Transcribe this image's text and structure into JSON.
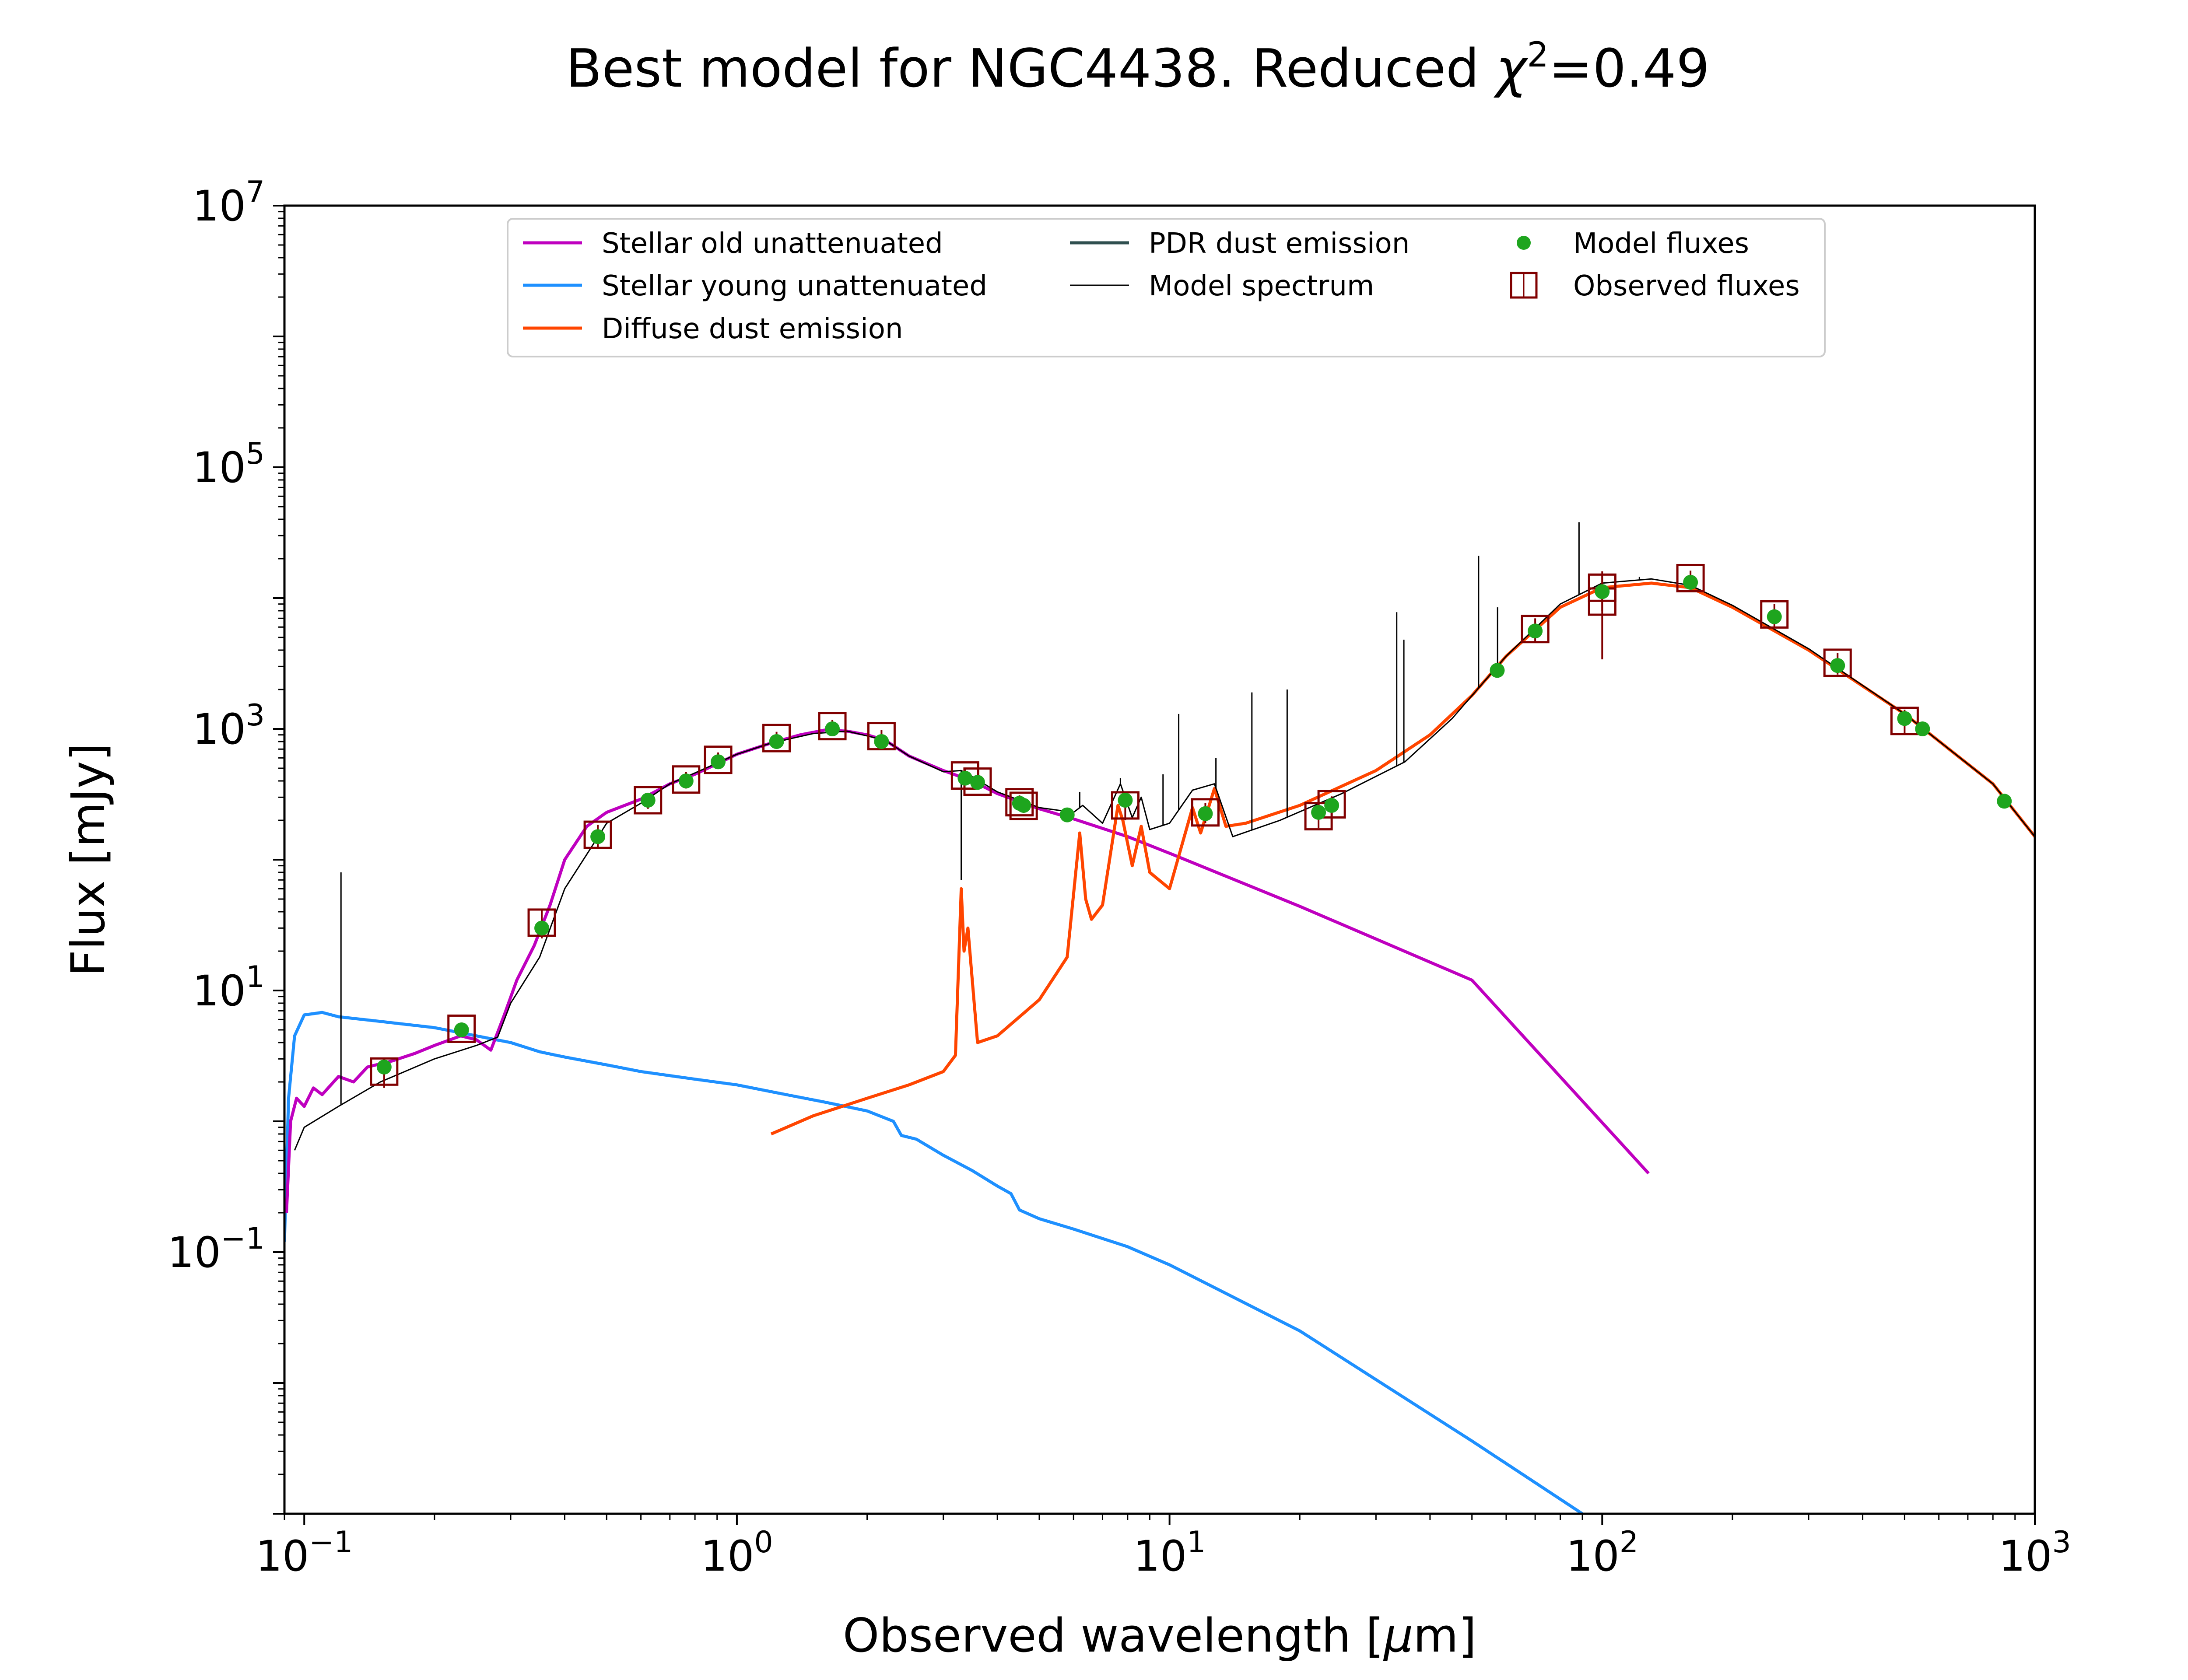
{
  "chart_data": {
    "type": "line",
    "title_main": "Best model for NGC4438. Reduced ",
    "title_chi": "χ",
    "title_exp": "2",
    "title_tail": "=0.49",
    "xlabel_main": "Observed wavelength [",
    "xlabel_mu": "μ",
    "xlabel_tail": "m]",
    "ylabel": "Flux [mJy]",
    "x_scale": "log",
    "y_scale": "log",
    "xlim": [
      0.09,
      1000
    ],
    "ylim": [
      0.001,
      10000000
    ],
    "grid": false,
    "legend_position": "top-center",
    "x_ticks": [
      {
        "value": 0.1,
        "base": "10",
        "exp": "−1"
      },
      {
        "value": 1,
        "base": "10",
        "exp": "0"
      },
      {
        "value": 10,
        "base": "10",
        "exp": "1"
      },
      {
        "value": 100,
        "base": "10",
        "exp": "2"
      },
      {
        "value": 1000,
        "base": "10",
        "exp": "3"
      }
    ],
    "y_ticks": [
      {
        "value": 0.1,
        "base": "10",
        "exp": "−1"
      },
      {
        "value": 10,
        "base": "10",
        "exp": "1"
      },
      {
        "value": 1000,
        "base": "10",
        "exp": "3"
      },
      {
        "value": 100000,
        "base": "10",
        "exp": "5"
      },
      {
        "value": 10000000,
        "base": "10",
        "exp": "7"
      }
    ],
    "legend": [
      {
        "label": "Stellar old unattenuated",
        "kind": "line",
        "color": "#bf00bf"
      },
      {
        "label": "Stellar young unattenuated",
        "kind": "line",
        "color": "#1e90ff"
      },
      {
        "label": "Diffuse dust emission",
        "kind": "line",
        "color": "#ff4500"
      },
      {
        "label": "PDR dust emission",
        "kind": "line",
        "color": "#2f4f4f"
      },
      {
        "label": "Model spectrum",
        "kind": "line",
        "color": "#000000"
      },
      {
        "label": "Model fluxes",
        "kind": "dot",
        "color": "#1ea51e"
      },
      {
        "label": "Observed fluxes",
        "kind": "box",
        "color": "#800000"
      }
    ],
    "series": [
      {
        "name": "Stellar old unattenuated",
        "color": "#bf00bf",
        "points": [
          [
            0.091,
            0.2
          ],
          [
            0.093,
            1.0
          ],
          [
            0.096,
            1.5
          ],
          [
            0.1,
            1.3
          ],
          [
            0.105,
            1.8
          ],
          [
            0.11,
            1.6
          ],
          [
            0.12,
            2.2
          ],
          [
            0.13,
            2.0
          ],
          [
            0.14,
            2.6
          ],
          [
            0.16,
            2.9
          ],
          [
            0.18,
            3.3
          ],
          [
            0.2,
            3.8
          ],
          [
            0.23,
            4.5
          ],
          [
            0.25,
            4.2
          ],
          [
            0.27,
            3.5
          ],
          [
            0.29,
            6.5
          ],
          [
            0.31,
            12
          ],
          [
            0.34,
            22
          ],
          [
            0.37,
            45
          ],
          [
            0.4,
            100
          ],
          [
            0.45,
            180
          ],
          [
            0.5,
            230
          ],
          [
            0.6,
            290
          ],
          [
            0.7,
            380
          ],
          [
            0.8,
            450
          ],
          [
            0.9,
            540
          ],
          [
            1.0,
            640
          ],
          [
            1.2,
            780
          ],
          [
            1.4,
            900
          ],
          [
            1.6,
            980
          ],
          [
            1.8,
            960
          ],
          [
            2.0,
            900
          ],
          [
            2.2,
            820
          ],
          [
            2.5,
            620
          ],
          [
            3.0,
            480
          ],
          [
            3.5,
            400
          ],
          [
            4.0,
            320
          ],
          [
            5.0,
            245
          ],
          [
            6.0,
            205
          ],
          [
            8.0,
            150
          ],
          [
            10,
            112
          ],
          [
            20,
            44
          ],
          [
            50,
            12
          ],
          [
            128,
            0.4
          ]
        ]
      },
      {
        "name": "Stellar young unattenuated",
        "color": "#1e90ff",
        "points": [
          [
            0.09,
            0.12
          ],
          [
            0.092,
            1.5
          ],
          [
            0.095,
            4.5
          ],
          [
            0.1,
            6.5
          ],
          [
            0.11,
            6.8
          ],
          [
            0.12,
            6.3
          ],
          [
            0.15,
            5.8
          ],
          [
            0.2,
            5.2
          ],
          [
            0.25,
            4.5
          ],
          [
            0.3,
            4.0
          ],
          [
            0.35,
            3.4
          ],
          [
            0.4,
            3.1
          ],
          [
            0.5,
            2.7
          ],
          [
            0.6,
            2.4
          ],
          [
            0.8,
            2.1
          ],
          [
            1.0,
            1.9
          ],
          [
            1.3,
            1.6
          ],
          [
            1.6,
            1.4
          ],
          [
            2.0,
            1.2
          ],
          [
            2.3,
            1.0
          ],
          [
            2.4,
            0.78
          ],
          [
            2.6,
            0.73
          ],
          [
            3.0,
            0.55
          ],
          [
            3.5,
            0.42
          ],
          [
            4.0,
            0.32
          ],
          [
            4.3,
            0.28
          ],
          [
            4.5,
            0.21
          ],
          [
            5.0,
            0.18
          ],
          [
            6.0,
            0.15
          ],
          [
            8.0,
            0.11
          ],
          [
            10,
            0.08
          ],
          [
            20,
            0.025
          ],
          [
            50,
            0.0036
          ],
          [
            90,
            0.001
          ]
        ]
      },
      {
        "name": "Diffuse dust emission",
        "color": "#ff4500",
        "points": [
          [
            1.2,
            0.8
          ],
          [
            1.5,
            1.1
          ],
          [
            2.0,
            1.5
          ],
          [
            2.5,
            1.9
          ],
          [
            3.0,
            2.4
          ],
          [
            3.2,
            3.2
          ],
          [
            3.3,
            60
          ],
          [
            3.35,
            20
          ],
          [
            3.42,
            30
          ],
          [
            3.5,
            12
          ],
          [
            3.6,
            4.0
          ],
          [
            4.0,
            4.5
          ],
          [
            5.0,
            8.5
          ],
          [
            5.8,
            18
          ],
          [
            6.2,
            160
          ],
          [
            6.4,
            50
          ],
          [
            6.6,
            35
          ],
          [
            7.0,
            45
          ],
          [
            7.6,
            260
          ],
          [
            7.8,
            200
          ],
          [
            8.2,
            90
          ],
          [
            8.6,
            180
          ],
          [
            9.0,
            80
          ],
          [
            10,
            60
          ],
          [
            11.3,
            250
          ],
          [
            11.8,
            160
          ],
          [
            12.7,
            350
          ],
          [
            13.5,
            180
          ],
          [
            15,
            190
          ],
          [
            20,
            260
          ],
          [
            30,
            480
          ],
          [
            40,
            900
          ],
          [
            50,
            1800
          ],
          [
            60,
            3600
          ],
          [
            80,
            8500
          ],
          [
            100,
            12000
          ],
          [
            130,
            13000
          ],
          [
            160,
            12000
          ],
          [
            200,
            8500
          ],
          [
            300,
            4000
          ],
          [
            500,
            1300
          ],
          [
            800,
            380
          ],
          [
            1000,
            150
          ]
        ]
      },
      {
        "name": "Model spectrum",
        "color": "#000000",
        "points": [
          [
            0.095,
            0.6
          ],
          [
            0.1,
            0.9
          ],
          [
            0.12,
            1.3
          ],
          [
            0.15,
            2.0
          ],
          [
            0.2,
            3.0
          ],
          [
            0.25,
            3.8
          ],
          [
            0.28,
            4.4
          ],
          [
            0.3,
            8.0
          ],
          [
            0.35,
            18
          ],
          [
            0.4,
            60
          ],
          [
            0.45,
            110
          ],
          [
            0.5,
            190
          ],
          [
            0.6,
            270
          ],
          [
            0.7,
            380
          ],
          [
            0.8,
            460
          ],
          [
            1.0,
            640
          ],
          [
            1.2,
            780
          ],
          [
            1.5,
            920
          ],
          [
            1.8,
            960
          ],
          [
            2.2,
            820
          ],
          [
            2.5,
            620
          ],
          [
            3.0,
            470
          ],
          [
            3.3,
            480
          ],
          [
            3.5,
            430
          ],
          [
            4.0,
            330
          ],
          [
            5.0,
            250
          ],
          [
            6.0,
            230
          ],
          [
            6.3,
            260
          ],
          [
            7.0,
            190
          ],
          [
            7.7,
            380
          ],
          [
            8.2,
            210
          ],
          [
            8.6,
            300
          ],
          [
            9.0,
            170
          ],
          [
            10,
            190
          ],
          [
            11.3,
            340
          ],
          [
            12.7,
            380
          ],
          [
            14,
            150
          ],
          [
            18,
            200
          ],
          [
            25,
            320
          ],
          [
            35,
            560
          ],
          [
            45,
            1200
          ],
          [
            60,
            3600
          ],
          [
            80,
            9000
          ],
          [
            100,
            13000
          ],
          [
            130,
            14000
          ],
          [
            160,
            12500
          ],
          [
            200,
            8800
          ],
          [
            300,
            4100
          ],
          [
            500,
            1300
          ],
          [
            800,
            380
          ],
          [
            1000,
            150
          ]
        ]
      }
    ],
    "emission_lines": [
      {
        "x": 0.1216,
        "peak": 80
      },
      {
        "x": 3.3,
        "peak": 70
      },
      {
        "x": 6.2,
        "peak": 330
      },
      {
        "x": 7.7,
        "peak": 420
      },
      {
        "x": 9.66,
        "peak": 450
      },
      {
        "x": 10.5,
        "peak": 1300
      },
      {
        "x": 12.8,
        "peak": 600
      },
      {
        "x": 15.5,
        "peak": 1900
      },
      {
        "x": 18.7,
        "peak": 2000
      },
      {
        "x": 33.5,
        "peak": 7800
      },
      {
        "x": 34.8,
        "peak": 4800
      },
      {
        "x": 51.8,
        "peak": 21000
      },
      {
        "x": 57.3,
        "peak": 8500
      },
      {
        "x": 88.4,
        "peak": 38000
      },
      {
        "x": 121.9,
        "peak": 14500
      }
    ],
    "model_fluxes": [
      [
        0.153,
        2.6
      ],
      [
        0.231,
        5.0
      ],
      [
        0.354,
        30
      ],
      [
        0.477,
        150
      ],
      [
        0.623,
        285
      ],
      [
        0.763,
        400
      ],
      [
        0.905,
        560
      ],
      [
        1.235,
        800
      ],
      [
        1.662,
        1000
      ],
      [
        2.159,
        800
      ],
      [
        3.368,
        420
      ],
      [
        3.6,
        390
      ],
      [
        4.5,
        270
      ],
      [
        4.6,
        260
      ],
      [
        5.8,
        220
      ],
      [
        7.9,
        285
      ],
      [
        12.1,
        225
      ],
      [
        22.1,
        230
      ],
      [
        23.7,
        260
      ],
      [
        57.2,
        2800
      ],
      [
        70,
        5600
      ],
      [
        100,
        11200
      ],
      [
        160,
        13200
      ],
      [
        250,
        7200
      ],
      [
        350,
        3050
      ],
      [
        500,
        1200
      ],
      [
        550,
        1000
      ],
      [
        850,
        280
      ]
    ],
    "observed_fluxes": [
      {
        "x": 0.153,
        "y": 2.4,
        "err": 0.6
      },
      {
        "x": 0.231,
        "y": 5.1,
        "err": 0.6
      },
      {
        "x": 0.354,
        "y": 33,
        "err": 8
      },
      {
        "x": 0.477,
        "y": 155,
        "err": 30
      },
      {
        "x": 0.623,
        "y": 285,
        "err": 40
      },
      {
        "x": 0.763,
        "y": 410,
        "err": 60
      },
      {
        "x": 0.905,
        "y": 580,
        "err": 80
      },
      {
        "x": 1.235,
        "y": 850,
        "err": 100
      },
      {
        "x": 1.662,
        "y": 1050,
        "err": 120
      },
      {
        "x": 2.159,
        "y": 880,
        "err": 100
      },
      {
        "x": 3.368,
        "y": 440,
        "err": 50
      },
      {
        "x": 3.6,
        "y": 395,
        "err": 45
      },
      {
        "x": 4.5,
        "y": 275,
        "err": 35
      },
      {
        "x": 4.6,
        "y": 258,
        "err": 30
      },
      {
        "x": 7.9,
        "y": 260,
        "err": 60
      },
      {
        "x": 12.1,
        "y": 230,
        "err": 40
      },
      {
        "x": 22.1,
        "y": 215,
        "err": 40
      },
      {
        "x": 23.7,
        "y": 265,
        "err": 40
      },
      {
        "x": 70,
        "y": 5800,
        "err": 1200
      },
      {
        "x": 100,
        "y": 12000,
        "err": 4000
      },
      {
        "x": 100,
        "y": 9400,
        "err": 6000
      },
      {
        "x": 160,
        "y": 14200,
        "err": 2000
      },
      {
        "x": 250,
        "y": 7500,
        "err": 1500
      },
      {
        "x": 350,
        "y": 3200,
        "err": 600
      },
      {
        "x": 500,
        "y": 1150,
        "err": 250
      }
    ]
  }
}
